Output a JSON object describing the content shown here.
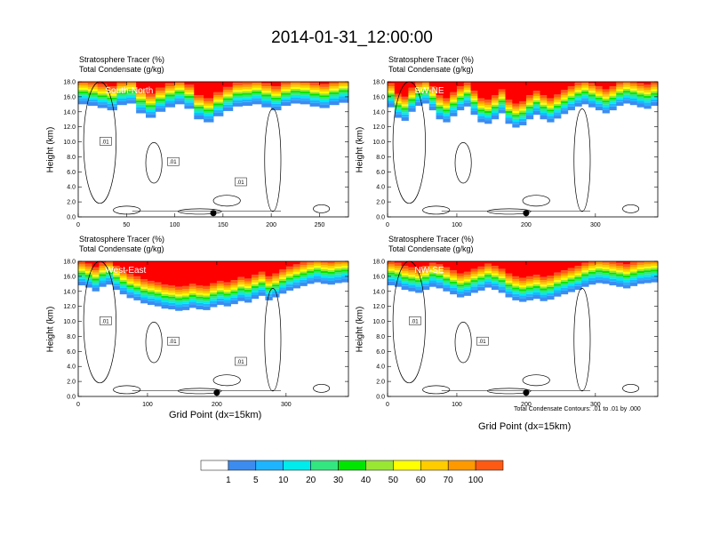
{
  "title": "2014-01-31_12:00:00",
  "colors": {
    "levels": [
      "#ffffff",
      "#3c8cf0",
      "#1eb4ff",
      "#00ebeb",
      "#33e680",
      "#00e600",
      "#99e633",
      "#ffff00",
      "#ffcc00",
      "#ff9900",
      "#ff5a14",
      "#ff0000"
    ]
  },
  "colorbar": {
    "labels": [
      "1",
      "5",
      "10",
      "20",
      "30",
      "40",
      "50",
      "60",
      "70",
      "100"
    ]
  },
  "footnote": "Total Condensate Contours: .01 to .01 by .000",
  "chart_data": [
    {
      "type": "heatmap",
      "subtitle_1": "Stratosphere Tracer   (%)",
      "subtitle_2": "Total Condensate   (g/kg)",
      "label": "South-North",
      "ylabel": "Height (km)",
      "xlabel": "",
      "xlim": [
        0,
        280
      ],
      "ylim": [
        0,
        18
      ],
      "xticks": [
        0,
        50,
        100,
        150,
        200,
        250
      ],
      "yticks": [
        "0.0",
        "2.0",
        "4.0",
        "6.0",
        "8.0",
        "10.0",
        "12.0",
        "14.0",
        "16.0",
        "18.0"
      ],
      "marker_x": 140,
      "contour_labels": [
        ".01",
        ".01",
        ".01"
      ],
      "tracer_floor_km": [
        15.0,
        14.8,
        14.5,
        14.2,
        14.9,
        15.1,
        13.8,
        13.2,
        14.0,
        14.6,
        15.0,
        14.4,
        13.0,
        12.6,
        13.4,
        14.1,
        14.7,
        14.8,
        15.0,
        14.6,
        14.2,
        14.8,
        15.1,
        15.0,
        14.7,
        14.5,
        14.9,
        15.2
      ]
    },
    {
      "type": "heatmap",
      "subtitle_1": "Stratosphere Tracer   (%)",
      "subtitle_2": "Total Condensate   (g/kg)",
      "label": "SW-NE",
      "ylabel": "Height (km)",
      "xlabel": "",
      "xlim": [
        0,
        390
      ],
      "ylim": [
        0,
        18
      ],
      "xticks": [
        0,
        100,
        200,
        300
      ],
      "yticks": [
        "0.0",
        "2.0",
        "4.0",
        "6.0",
        "8.0",
        "10.0",
        "12.0",
        "14.0",
        "16.0",
        "18.0"
      ],
      "marker_x": 200,
      "contour_labels": [],
      "tracer_floor_km": [
        14.6,
        13.2,
        12.8,
        14.0,
        14.8,
        15.1,
        14.2,
        13.0,
        12.6,
        13.4,
        14.2,
        14.7,
        13.6,
        12.6,
        12.4,
        13.0,
        13.8,
        12.4,
        11.9,
        12.2,
        13.0,
        13.6,
        13.0,
        12.6,
        13.1,
        13.7,
        14.2,
        14.7,
        15.0,
        14.6,
        14.2,
        13.8,
        14.2,
        14.8,
        15.1,
        14.9,
        14.6,
        14.4,
        14.8
      ]
    },
    {
      "type": "heatmap",
      "subtitle_1": "Stratosphere Tracer   (%)",
      "subtitle_2": "Total Condensate   (g/kg)",
      "label": "West-East",
      "ylabel": "Height (km)",
      "xlabel": "Grid Point (dx=15km)",
      "xlim": [
        0,
        390
      ],
      "ylim": [
        0,
        18
      ],
      "xticks": [
        0,
        100,
        200,
        300
      ],
      "yticks": [
        "0.0",
        "2.0",
        "4.0",
        "6.0",
        "8.0",
        "10.0",
        "12.0",
        "14.0",
        "16.0",
        "18.0"
      ],
      "marker_x": 200,
      "contour_labels": [
        ".01",
        ".01",
        ".01"
      ],
      "tracer_floor_km": [
        14.8,
        14.5,
        14.0,
        14.6,
        14.9,
        14.2,
        13.6,
        13.1,
        12.8,
        12.4,
        12.2,
        12.0,
        11.7,
        11.6,
        11.4,
        11.5,
        11.8,
        11.6,
        11.5,
        11.9,
        12.2,
        12.0,
        12.3,
        12.7,
        12.5,
        13.0,
        13.4,
        12.8,
        13.2,
        13.7,
        14.1,
        14.4,
        14.7,
        15.0,
        15.2,
        15.0,
        14.9,
        15.1,
        15.2
      ]
    },
    {
      "type": "heatmap",
      "subtitle_1": "Stratosphere Tracer   (%)",
      "subtitle_2": "Total Condensate   (g/kg)",
      "label": "NW-SE",
      "ylabel": "Height (km)",
      "xlabel": "Grid Point (dx=15km)",
      "xlim": [
        0,
        390
      ],
      "ylim": [
        0,
        18
      ],
      "xticks": [
        0,
        100,
        200,
        300
      ],
      "yticks": [
        "0.0",
        "2.0",
        "4.0",
        "6.0",
        "8.0",
        "10.0",
        "12.0",
        "14.0",
        "16.0",
        "18.0"
      ],
      "marker_x": 200,
      "contour_labels": [
        ".01",
        ".01"
      ],
      "tracer_floor_km": [
        14.8,
        14.6,
        14.2,
        14.0,
        13.8,
        14.2,
        14.6,
        14.4,
        14.0,
        13.6,
        13.2,
        13.4,
        13.8,
        14.1,
        14.5,
        14.2,
        13.8,
        13.2,
        12.8,
        12.6,
        12.8,
        13.0,
        12.7,
        12.9,
        13.3,
        13.6,
        13.9,
        14.2,
        14.6,
        14.9,
        15.1,
        15.0,
        14.8,
        14.6,
        14.4,
        14.7,
        15.0,
        15.1,
        15.2
      ]
    }
  ]
}
